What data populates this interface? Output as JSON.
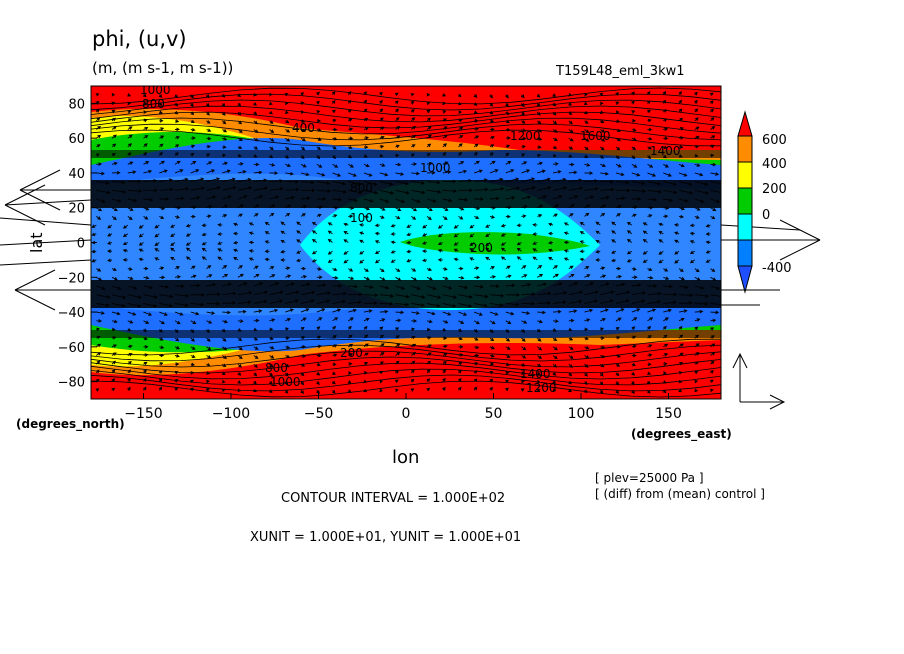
{
  "title": "phi, (u,v)",
  "units_line": "(m, (m s-1, m s-1))",
  "run_label": "T159L48_eml_3kw1",
  "chart_data": {
    "type": "heatmap",
    "variable": "phi",
    "vector_field": "(u,v)",
    "xlabel": "lon",
    "ylabel": "lat",
    "x_units": "(degrees_east)",
    "y_units": "(degrees_north)",
    "xlim": [
      -180,
      180
    ],
    "ylim": [
      -90,
      90
    ],
    "x_ticks": [
      -150,
      -100,
      -50,
      0,
      50,
      100,
      150
    ],
    "y_ticks": [
      -80,
      -60,
      -40,
      -20,
      0,
      20,
      40,
      60,
      80
    ],
    "colorbar_ticks": [
      600,
      400,
      200,
      0,
      -400
    ],
    "colorbar_colors": [
      "#ff0000",
      "#ff8c00",
      "#ffff00",
      "#00cc00",
      "#00ffff",
      "#0080ff",
      "#1e50ff"
    ],
    "contour_labels": [
      "1000",
      "800",
      "400",
      "1200",
      "1600",
      "1400",
      "1000",
      "800",
      "100",
      "200",
      "1400",
      "1200",
      "1000",
      "800",
      "200"
    ],
    "contour_interval_text": "CONTOUR INTERVAL = 1.000E+02",
    "unit_vector_text": "XUNIT = 1.000E+01, YUNIT = 1.000E+01",
    "annotations": [
      "[ plev=25000 Pa ]",
      "[ (diff) from (mean) control ]"
    ]
  }
}
